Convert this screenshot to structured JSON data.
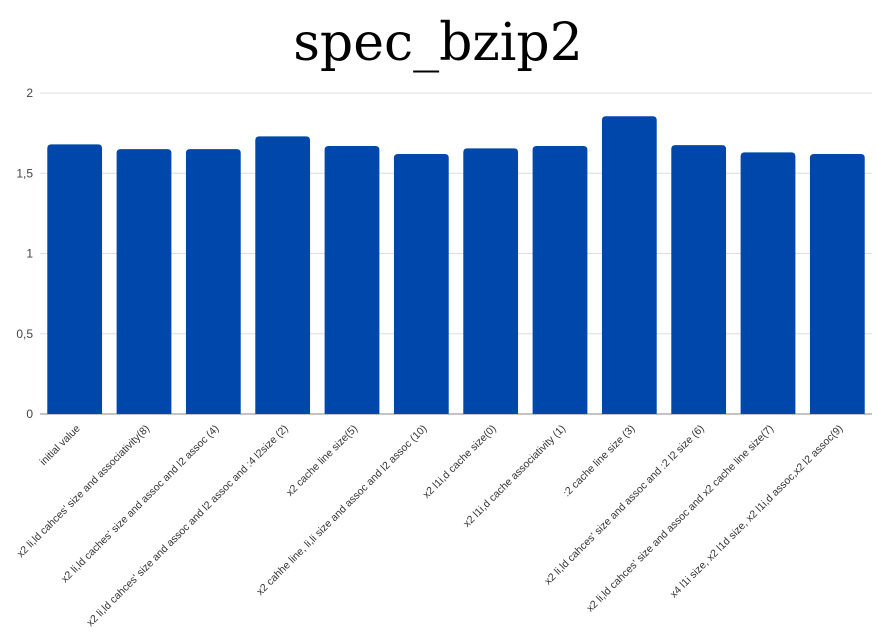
{
  "chart_data": {
    "type": "bar",
    "title": "spec_bzip2",
    "xlabel": "",
    "ylabel": "",
    "ylim": [
      0,
      2
    ],
    "yticks": [
      {
        "value": 0,
        "label": "0"
      },
      {
        "value": 0.5,
        "label": "0,5"
      },
      {
        "value": 1,
        "label": "1"
      },
      {
        "value": 1.5,
        "label": "1,5"
      },
      {
        "value": 2,
        "label": "2"
      }
    ],
    "grid": true,
    "legend": "none",
    "bar_color": "#0047ab",
    "categories": [
      "initial value",
      "x2 li,ld cahces' size and associativity(8)",
      "x2 li,ld caches' size and assoc and l2 assoc (4)",
      "x2 li,ld cahces' size and assoc and l2 assoc and :4 l2size (2)",
      "x2 cache line size(5)",
      "x2 cahhe line, li,li size and assoc and l2 assoc (10)",
      "x2 l1i,d cache size(0)",
      "x2 l1i,d cache associativity (1)",
      ":2 cache line size (3)",
      "x2 li,ld cahces' size and assoc and :2 l2 size (6)",
      "x2 li,ld cahces' size and assoc and x2 cache line size(7)",
      "x4 l1i size, x2 l1d size, x2 l1i,d assoc,x2 l2 assoc(9)"
    ],
    "values": [
      1.68,
      1.65,
      1.65,
      1.73,
      1.67,
      1.62,
      1.655,
      1.67,
      1.855,
      1.675,
      1.63,
      1.62
    ]
  }
}
